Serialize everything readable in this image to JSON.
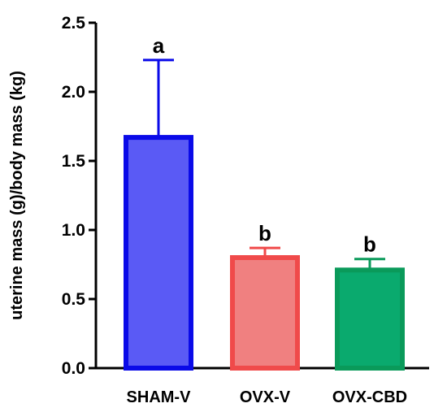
{
  "chart_data": {
    "type": "bar",
    "title": "",
    "xlabel": "",
    "ylabel": "uterine mass (g)/body mass (kg)",
    "ylim": [
      0,
      2.5
    ],
    "yticks": [
      0.0,
      0.5,
      1.0,
      1.5,
      2.0,
      2.5
    ],
    "ytick_labels": [
      "0.0",
      "0.5",
      "1.0",
      "1.5",
      "2.0",
      "2.5"
    ],
    "categories": [
      "SHAM-V",
      "OVX-V",
      "OVX-CBD"
    ],
    "values": [
      1.67,
      0.8,
      0.71
    ],
    "error_upper": [
      2.23,
      0.87,
      0.79
    ],
    "significance_labels": [
      "a",
      "b",
      "b"
    ],
    "colors": {
      "fill": [
        "#5a5af5",
        "#f08080",
        "#0aaa6e"
      ],
      "stroke": [
        "#0a0ae8",
        "#f04a4a",
        "#0a9a5a"
      ]
    },
    "grid": false,
    "legend": "none"
  }
}
